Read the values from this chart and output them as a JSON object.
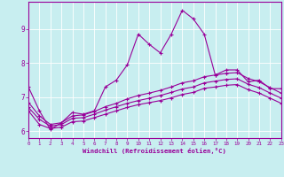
{
  "xlabel": "Windchill (Refroidissement éolien,°C)",
  "background_color": "#c8eef0",
  "line_color": "#990099",
  "grid_color": "#ffffff",
  "xlim": [
    0,
    23
  ],
  "ylim": [
    5.8,
    9.8
  ],
  "xticks": [
    0,
    1,
    2,
    3,
    4,
    5,
    6,
    7,
    8,
    9,
    10,
    11,
    12,
    13,
    14,
    15,
    16,
    17,
    18,
    19,
    20,
    21,
    22,
    23
  ],
  "yticks": [
    6,
    7,
    8,
    9
  ],
  "hours": [
    0,
    1,
    2,
    3,
    4,
    5,
    6,
    7,
    8,
    9,
    10,
    11,
    12,
    13,
    14,
    15,
    16,
    17,
    18,
    19,
    20,
    21,
    22,
    23
  ],
  "line1": [
    7.3,
    6.6,
    6.05,
    6.25,
    6.55,
    6.5,
    6.6,
    7.3,
    7.5,
    7.95,
    8.85,
    8.55,
    8.3,
    8.85,
    9.55,
    9.3,
    8.85,
    7.65,
    7.8,
    7.8,
    7.45,
    7.5,
    7.25,
    7.25
  ],
  "line2": [
    6.85,
    6.45,
    6.2,
    6.25,
    6.45,
    6.48,
    6.58,
    6.72,
    6.82,
    6.95,
    7.05,
    7.12,
    7.2,
    7.3,
    7.42,
    7.48,
    7.6,
    7.65,
    7.7,
    7.72,
    7.55,
    7.45,
    7.28,
    7.12
  ],
  "line3": [
    6.7,
    6.35,
    6.15,
    6.2,
    6.38,
    6.4,
    6.5,
    6.62,
    6.72,
    6.82,
    6.9,
    6.97,
    7.05,
    7.14,
    7.24,
    7.3,
    7.42,
    7.47,
    7.52,
    7.54,
    7.38,
    7.28,
    7.12,
    6.97
  ],
  "line4": [
    6.6,
    6.2,
    6.08,
    6.12,
    6.28,
    6.3,
    6.4,
    6.5,
    6.6,
    6.7,
    6.78,
    6.84,
    6.9,
    6.98,
    7.08,
    7.14,
    7.26,
    7.3,
    7.35,
    7.37,
    7.22,
    7.12,
    6.97,
    6.82
  ]
}
